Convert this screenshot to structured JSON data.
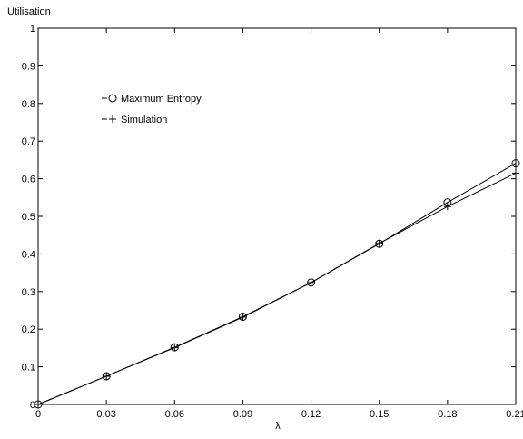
{
  "chart_data": {
    "type": "line",
    "title": "",
    "xlabel": "λ",
    "ylabel": "Utilisation",
    "xlim": [
      0,
      0.21
    ],
    "ylim": [
      0,
      1
    ],
    "x": [
      0,
      0.03,
      0.06,
      0.09,
      0.12,
      0.15,
      0.18,
      0.21
    ],
    "x_tick_labels": [
      "0",
      "0.03",
      "0.06",
      "0.09",
      "0.12",
      "0.15",
      "0.18",
      "0.21"
    ],
    "y_ticks": [
      0,
      0.1,
      0.2,
      0.3,
      0.4,
      0.5,
      0.6,
      0.7,
      0.8,
      0.9,
      1
    ],
    "y_tick_labels": [
      "0",
      "0.1",
      "0.2",
      "0.3",
      "0.4",
      "0.5",
      "0.6",
      "0.7",
      "0.8",
      "0.9",
      "1"
    ],
    "grid": false,
    "legend_position": "upper-left",
    "series": [
      {
        "name": "Maximum Entropy",
        "marker": "circle",
        "legend_symbol": "–o",
        "color": "#000000",
        "values": [
          0,
          0.075,
          0.152,
          0.233,
          0.324,
          0.427,
          0.537,
          0.641
        ]
      },
      {
        "name": "Simulation",
        "marker": "plus",
        "legend_symbol": "–+",
        "color": "#000000",
        "values": [
          0,
          0.075,
          0.151,
          0.232,
          0.324,
          0.428,
          0.526,
          0.615
        ]
      }
    ]
  }
}
